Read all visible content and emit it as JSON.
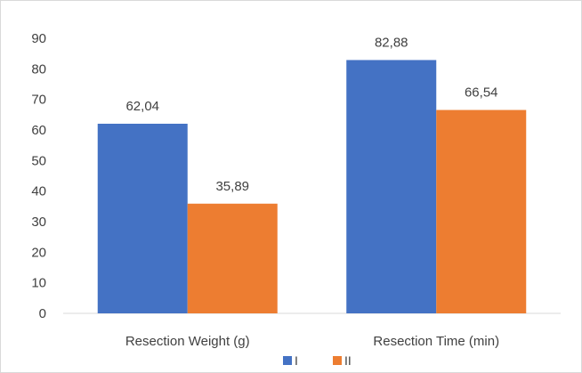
{
  "chart_data": {
    "type": "bar",
    "categories": [
      "Resection Weight (g)",
      "Resection Time (min)"
    ],
    "series": [
      {
        "name": "I",
        "values": [
          62.04,
          82.88
        ],
        "labels": [
          "62,04",
          "82,88"
        ],
        "color": "#4472c4"
      },
      {
        "name": "II",
        "values": [
          35.89,
          66.54
        ],
        "labels": [
          "35,89",
          "66,54"
        ],
        "color": "#ed7d31"
      }
    ],
    "ylim": [
      0,
      90
    ],
    "yticks": [
      "0",
      "10",
      "20",
      "30",
      "40",
      "50",
      "60",
      "70",
      "80",
      "90"
    ],
    "grid": false,
    "legend_position": "bottom"
  }
}
